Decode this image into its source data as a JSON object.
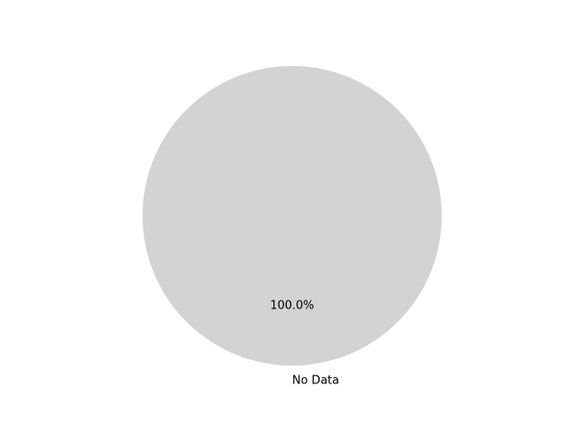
{
  "chart_data": {
    "type": "pie",
    "title": "",
    "slices": [
      {
        "label": "No Data",
        "value": 1,
        "percent_label": "100.0%",
        "color": "#d3d3d3"
      }
    ],
    "legend": "none",
    "grid": false
  }
}
